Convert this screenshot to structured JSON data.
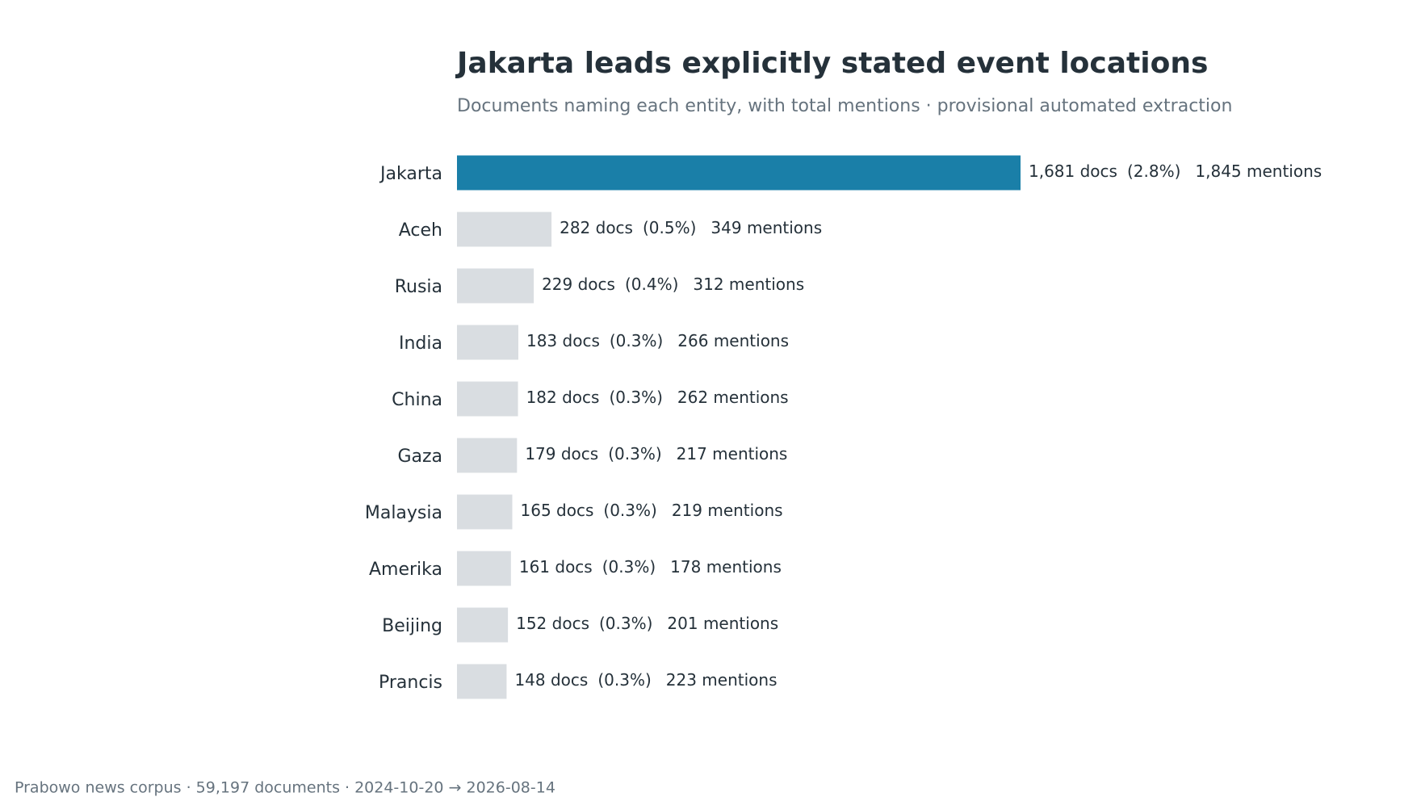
{
  "chart_data": {
    "type": "bar",
    "orientation": "horizontal",
    "title": "Jakarta leads explicitly stated event locations",
    "subtitle": "Documents naming each entity, with total mentions · provisional automated extraction",
    "categories": [
      "Jakarta",
      "Aceh",
      "Rusia",
      "India",
      "China",
      "Gaza",
      "Malaysia",
      "Amerika",
      "Beijing",
      "Prancis"
    ],
    "values": [
      1681,
      282,
      229,
      183,
      182,
      179,
      165,
      161,
      152,
      148
    ],
    "value_labels": [
      "1,681 docs",
      "282 docs",
      "229 docs",
      "183 docs",
      "182 docs",
      "179 docs",
      "165 docs",
      "161 docs",
      "152 docs",
      "148 docs"
    ],
    "share_labels": [
      "(2.8%)",
      "(0.5%)",
      "(0.4%)",
      "(0.3%)",
      "(0.3%)",
      "(0.3%)",
      "(0.3%)",
      "(0.3%)",
      "(0.3%)",
      "(0.3%)"
    ],
    "mention_labels": [
      "1,845 mentions",
      "349 mentions",
      "312 mentions",
      "266 mentions",
      "262 mentions",
      "217 mentions",
      "219 mentions",
      "178 mentions",
      "201 mentions",
      "223 mentions"
    ],
    "colors": [
      "#1a7fa8",
      "#d9dde1",
      "#d9dde1",
      "#d9dde1",
      "#d9dde1",
      "#d9dde1",
      "#d9dde1",
      "#d9dde1",
      "#d9dde1",
      "#d9dde1"
    ],
    "footer": "Prabowo news corpus · 59,197 documents · 2024-10-20 → 2026-08-14"
  }
}
